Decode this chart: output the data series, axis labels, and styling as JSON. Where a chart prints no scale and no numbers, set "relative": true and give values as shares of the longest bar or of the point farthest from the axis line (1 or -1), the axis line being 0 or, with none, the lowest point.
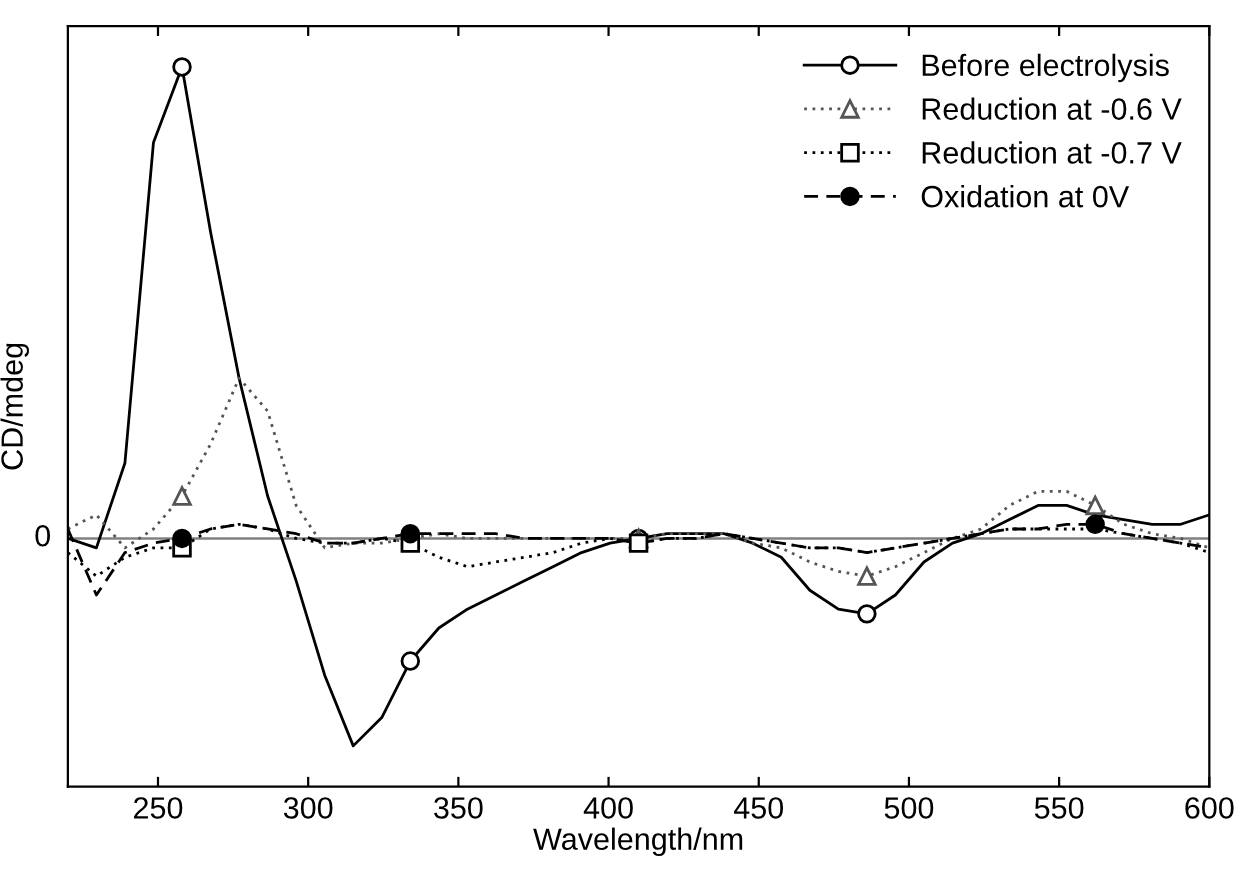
{
  "chart_data": {
    "type": "line",
    "relative": true,
    "xlabel": "Wavelength/nm",
    "ylabel": "CD/mdeg",
    "x": [
      220,
      229.5,
      239,
      248.5,
      258,
      267.5,
      277,
      286.5,
      296,
      305.5,
      315,
      324.5,
      334,
      343.5,
      353,
      362.5,
      372,
      381.5,
      391,
      400.5,
      410,
      419.5,
      429,
      438.5,
      448,
      457.5,
      467,
      476.5,
      486,
      495.5,
      505,
      514.5,
      524,
      533.5,
      543,
      552.5,
      562,
      571.5,
      581,
      590.5,
      600
    ],
    "xlim": [
      220,
      600
    ],
    "xticks": [
      250,
      300,
      350,
      400,
      450,
      500,
      550,
      600
    ],
    "ref_lines": [
      {
        "axis": "y",
        "value": 0,
        "label": "0",
        "color": "#808080"
      }
    ],
    "legend": "top right",
    "grid": false,
    "series": [
      {
        "name": "Before electrolysis",
        "color": "#000000",
        "line_style": "solid",
        "values": [
          0,
          -0.02,
          0.16,
          0.84,
          1,
          0.65,
          0.34,
          0.09,
          -0.09,
          -0.29,
          -0.44,
          -0.38,
          -0.26,
          -0.19,
          -0.15,
          -0.12,
          -0.09,
          -0.06,
          -0.03,
          -0.01,
          0,
          0.01,
          0.01,
          0.01,
          -0.01,
          -0.04,
          -0.11,
          -0.15,
          -0.16,
          -0.12,
          -0.05,
          -0.01,
          0.01,
          0.04,
          0.07,
          0.07,
          0.05,
          0.04,
          0.03,
          0.03,
          0.05
        ]
      },
      {
        "name": "Reduction at -0.6 V",
        "color": "#555555",
        "line_style": "dotted",
        "values": [
          0.02,
          0.05,
          -0.02,
          0.02,
          0.09,
          0.2,
          0.34,
          0.27,
          0.07,
          -0.02,
          -0.01,
          -0.01,
          0,
          0.01,
          0,
          0,
          0,
          0,
          0,
          0,
          0,
          0.01,
          0.01,
          0.01,
          -0.01,
          -0.02,
          -0.05,
          -0.07,
          -0.08,
          -0.06,
          -0.03,
          0,
          0.02,
          0.07,
          0.1,
          0.1,
          0.07,
          0.03,
          0.01,
          0,
          -0.02
        ]
      },
      {
        "name": "Reduction at -0.7 V",
        "color": "#000000",
        "line_style": "dotted",
        "values": [
          -0.03,
          -0.08,
          -0.04,
          -0.02,
          -0.02,
          0.02,
          0.03,
          0.02,
          0,
          -0.01,
          -0.01,
          0,
          -0.01,
          -0.04,
          -0.06,
          -0.05,
          -0.04,
          -0.03,
          -0.01,
          0,
          -0.01,
          0,
          0,
          0.01,
          0,
          -0.01,
          -0.02,
          -0.02,
          -0.03,
          -0.02,
          -0.01,
          0,
          0.01,
          0.02,
          0.02,
          0.02,
          0.02,
          0.01,
          0,
          -0.01,
          -0.03
        ]
      },
      {
        "name": "Oxidation at 0V",
        "color": "#000000",
        "line_style": "dashed",
        "values": [
          0.02,
          -0.12,
          -0.03,
          -0.01,
          0,
          0.02,
          0.03,
          0.02,
          0.01,
          -0.01,
          -0.01,
          0,
          0.01,
          0.01,
          0.01,
          0.01,
          0,
          0,
          0,
          0,
          -0.01,
          0,
          0,
          0.01,
          0,
          -0.01,
          -0.02,
          -0.02,
          -0.03,
          -0.02,
          -0.01,
          0,
          0.01,
          0.02,
          0.02,
          0.03,
          0.03,
          0.01,
          0,
          -0.01,
          -0.02
        ]
      },
      {
        "type": "scatter",
        "color": "#000000",
        "marker": "circle",
        "x": [
          258,
          334,
          410,
          486
        ],
        "values": [
          1,
          -0.26,
          0,
          -0.16
        ]
      },
      {
        "type": "scatter",
        "color": "#555555",
        "marker": "triangle",
        "x": [
          258,
          334,
          410,
          486,
          562
        ],
        "values": [
          0.09,
          null,
          0,
          -0.08,
          0.07
        ]
      },
      {
        "type": "scatter",
        "color": "#000000",
        "marker": "square",
        "x": [
          258,
          334,
          410
        ],
        "values": [
          -0.02,
          -0.01,
          -0.01
        ]
      },
      {
        "type": "scatter",
        "color": "#000000",
        "marker": "circle",
        "x": [
          258,
          334,
          410,
          486,
          562
        ],
        "values": [
          0,
          0.01,
          null,
          null,
          0.03
        ]
      }
    ]
  }
}
